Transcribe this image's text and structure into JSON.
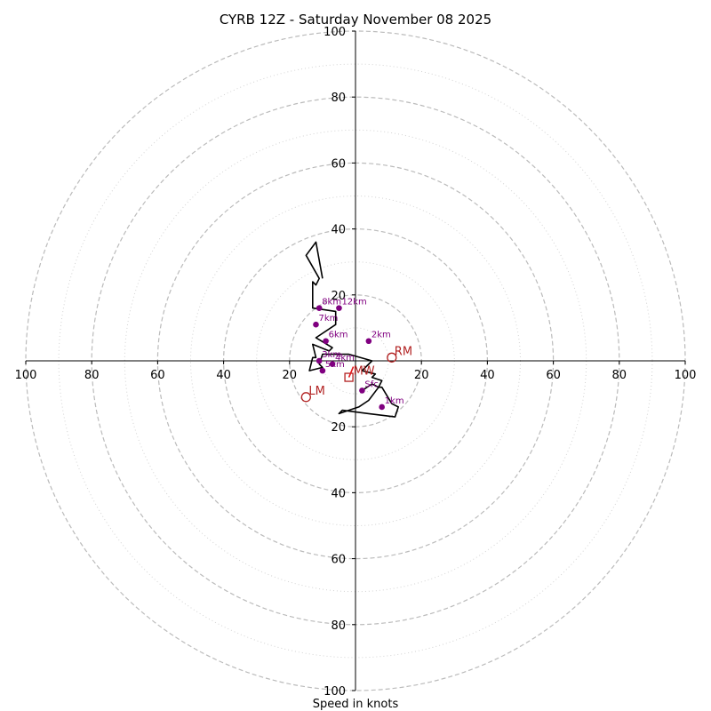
{
  "chart_data": {
    "type": "line",
    "title": "CYRB 12Z - Saturday November 08 2025",
    "xlabel": "Speed in knots",
    "ylabel": "",
    "xlim": [
      -100,
      100
    ],
    "ylim": [
      -100,
      100
    ],
    "grid": true,
    "rings_major": [
      20,
      40,
      60,
      80,
      100
    ],
    "rings_minor": [
      10,
      30,
      50,
      70,
      90
    ],
    "x_tick_labels": [
      "100",
      "80",
      "60",
      "40",
      "20",
      "20",
      "40",
      "60",
      "80",
      "100"
    ],
    "x_tick_values": [
      -100,
      -80,
      -60,
      -40,
      -20,
      20,
      40,
      60,
      80,
      100
    ],
    "y_tick_labels": [
      "100",
      "80",
      "60",
      "40",
      "20",
      "20",
      "40",
      "60",
      "80",
      "100"
    ],
    "y_tick_values": [
      100,
      80,
      60,
      40,
      20,
      -20,
      -40,
      -60,
      -80,
      -100
    ],
    "colors": {
      "trace": "#000000",
      "altitude_markers": "#800080",
      "storm_motion": "#b22222",
      "mean_wind": "#e41a1c",
      "grid": "#bbbbbb"
    },
    "trace": {
      "u": [
        2,
        5,
        7,
        8,
        11,
        13,
        12,
        4,
        -4,
        -5,
        1,
        4,
        7,
        8,
        5,
        6,
        2,
        5,
        -2,
        -10,
        -11,
        -10,
        -14,
        -13,
        -12,
        -13,
        -8,
        -7,
        -12,
        -6,
        -6,
        -13,
        -13,
        -12,
        -11,
        -15,
        -12,
        -10
      ],
      "v": [
        -9,
        -7,
        -8,
        -8,
        -13,
        -14,
        -17,
        -16,
        -15,
        -16,
        -14,
        -12,
        -8,
        -6,
        -5,
        -4,
        -3,
        0,
        2,
        2,
        -1,
        -2,
        -3,
        1,
        1,
        5,
        3,
        4,
        7,
        11,
        15,
        16,
        24,
        23,
        25,
        32,
        36,
        25
      ]
    },
    "altitude_markers": [
      {
        "label": "Sfc",
        "u": 2,
        "v": -9
      },
      {
        "label": "1km",
        "u": 8,
        "v": -14
      },
      {
        "label": "2km",
        "u": 4,
        "v": 6
      },
      {
        "label": "3km",
        "u": -11,
        "v": 0
      },
      {
        "label": "4km",
        "u": -7,
        "v": -1
      },
      {
        "label": "5km",
        "u": -10,
        "v": -3
      },
      {
        "label": "6km",
        "u": -9,
        "v": 6
      },
      {
        "label": "7km",
        "u": -12,
        "v": 11
      },
      {
        "label": "8km",
        "u": -11,
        "v": 16
      },
      {
        "label": "12km",
        "u": -5,
        "v": 16
      }
    ],
    "storm_motion": [
      {
        "label": "RM",
        "u": 11,
        "v": 1
      },
      {
        "label": "LM",
        "u": -15,
        "v": -11
      }
    ],
    "mean_wind": {
      "label": "MW",
      "u": -2,
      "v": -5
    }
  }
}
